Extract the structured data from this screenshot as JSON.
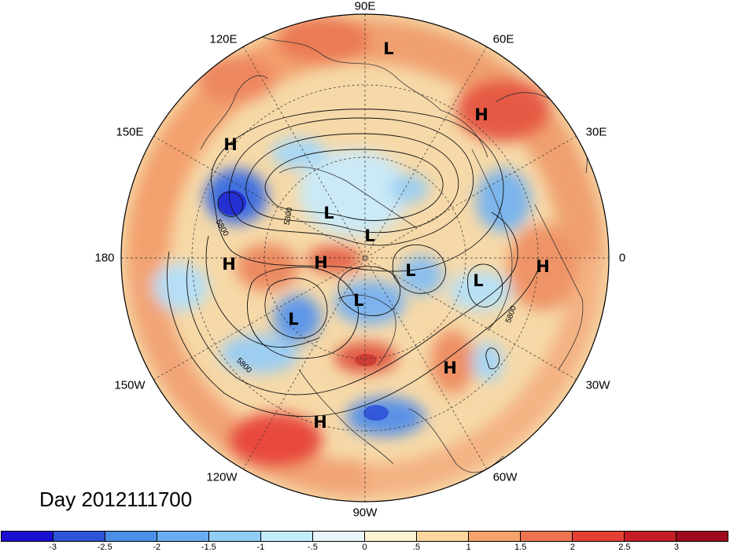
{
  "title": "Day 2012111700",
  "longitude_labels": {
    "lon_90e": "90E",
    "lon_60e": "60E",
    "lon_120e": "120E",
    "lon_30e": "30E",
    "lon_150e": "150E",
    "lon_180": "180",
    "lon_0": "0",
    "lon_150w": "150W",
    "lon_30w": "30W",
    "lon_120w": "120W",
    "lon_60w": "60W",
    "lon_90w": "90W"
  },
  "pressure_centers": [
    {
      "label": "L",
      "name": "low-90e"
    },
    {
      "label": "H",
      "name": "high-60e"
    },
    {
      "label": "H",
      "name": "high-150e"
    },
    {
      "label": "L",
      "name": "low-siberia"
    },
    {
      "label": "L",
      "name": "low-arctic"
    },
    {
      "label": "H",
      "name": "high-180"
    },
    {
      "label": "H",
      "name": "high-bering"
    },
    {
      "label": "L",
      "name": "low-greenland"
    },
    {
      "label": "L",
      "name": "low-north-atlantic"
    },
    {
      "label": "H",
      "name": "high-africa"
    },
    {
      "label": "L",
      "name": "low-canada"
    },
    {
      "label": "L",
      "name": "low-gulf-alaska"
    },
    {
      "label": "H",
      "name": "high-atlantic"
    },
    {
      "label": "H",
      "name": "high-mexico"
    }
  ],
  "contour_labels": [
    "5300",
    "5800",
    "5800",
    "5800"
  ],
  "colorbar": {
    "ticks": [
      "-3",
      "-2.5",
      "-2",
      "-1.5",
      "-1",
      "-.5",
      "0",
      ".5",
      "1",
      "1.5",
      "2",
      "2.5",
      "3"
    ],
    "colors": [
      "#1a0fcf",
      "#2f55d6",
      "#4a8ee6",
      "#6aacf0",
      "#90cef6",
      "#c3ecfa",
      "#e9f7fb",
      "#fbf3d0",
      "#fad69c",
      "#f6a36c",
      "#ee7350",
      "#e33f35",
      "#c41d25",
      "#9e0a1e"
    ]
  }
}
